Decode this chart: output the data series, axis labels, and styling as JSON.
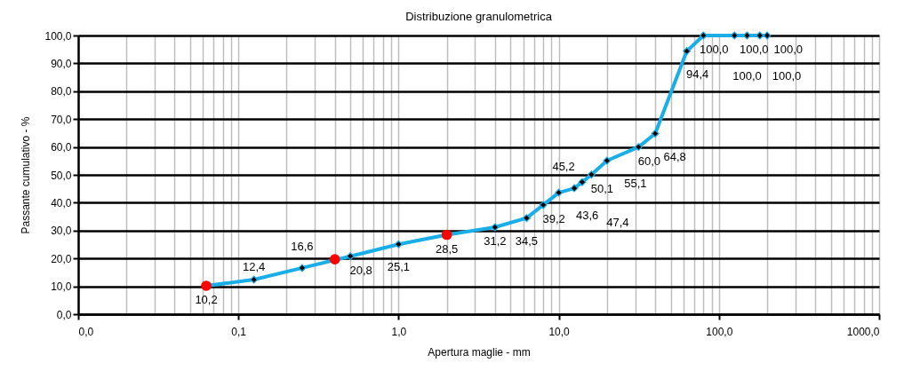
{
  "chart_data": {
    "type": "line",
    "title": "Distribuzione granulometrica",
    "xlabel": "Apertura maglie - mm",
    "ylabel": "Passante cumulativo - %",
    "x": [
      0.063,
      0.125,
      0.25,
      0.5,
      1,
      2,
      4,
      6.3,
      8,
      10,
      12.5,
      14,
      16,
      20,
      31.5,
      40,
      63,
      80,
      125,
      150,
      180,
      200
    ],
    "series": [
      {
        "type": "line",
        "color": "#1aaee8",
        "values": [
          10.2,
          12.4,
          16.6,
          20.8,
          25.1,
          28.5,
          31.2,
          34.5,
          39.2,
          43.6,
          45.2,
          47.4,
          50.1,
          55.1,
          60.0,
          64.8,
          94.4,
          100.0,
          100.0,
          100.0,
          100.0,
          100.0
        ],
        "value_labels": [
          "10,2",
          "12,4",
          "16,6",
          "20,8",
          "25,1",
          "28,5",
          "31,2",
          "34,5",
          "39,2",
          "43,6",
          "45,2",
          "47,4",
          "50,1",
          "55,1",
          "60,0",
          "64,8",
          "94,4",
          "100,0",
          "100,0",
          "100,0",
          "100,0",
          "100,0"
        ]
      },
      {
        "type": "scatter",
        "color": "#ff0000",
        "marker": "circle",
        "x": [
          0.063,
          0.4,
          2
        ],
        "values": [
          10.2,
          19.7,
          28.5
        ]
      }
    ],
    "marker": "diamond",
    "log": "x",
    "xlim": [
      0.01,
      1000
    ],
    "xticks": [
      {
        "value": 0.01,
        "label": "0,0"
      },
      {
        "value": 0.1,
        "label": "0,1"
      },
      {
        "value": 1,
        "label": "1,0"
      },
      {
        "value": 10,
        "label": "10,0"
      },
      {
        "value": 100,
        "label": "100,0"
      },
      {
        "value": 1000,
        "label": "1000,0"
      }
    ],
    "ylim": [
      0,
      100
    ],
    "yticks": [
      {
        "value": 0,
        "label": "0,0"
      },
      {
        "value": 10,
        "label": "10,0"
      },
      {
        "value": 20,
        "label": "20,0"
      },
      {
        "value": 30,
        "label": "30,0"
      },
      {
        "value": 40,
        "label": "40,0"
      },
      {
        "value": 50,
        "label": "50,0"
      },
      {
        "value": 60,
        "label": "60,0"
      },
      {
        "value": 70,
        "label": "70,0"
      },
      {
        "value": 80,
        "label": "80,0"
      },
      {
        "value": 90,
        "label": "90,0"
      },
      {
        "value": 100,
        "label": "100,0"
      }
    ],
    "grid": true
  }
}
